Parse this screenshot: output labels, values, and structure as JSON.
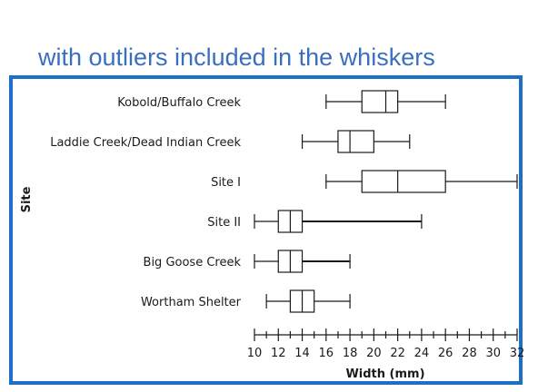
{
  "heading": "with outliers included in the whiskers",
  "chart_data": {
    "type": "box",
    "xlabel": "Width (mm)",
    "ylabel": "Site",
    "xlim": [
      10,
      32
    ],
    "xticks": [
      10,
      12,
      14,
      16,
      18,
      20,
      22,
      24,
      26,
      28,
      30,
      32
    ],
    "series": [
      {
        "name": "Kobold/Buffalo Creek",
        "min": 16,
        "q1": 19,
        "median": 21,
        "q3": 22,
        "max": 26
      },
      {
        "name": "Laddie Creek/Dead Indian Creek",
        "min": 14,
        "q1": 17,
        "median": 18,
        "q3": 20,
        "max": 23
      },
      {
        "name": "Site I",
        "min": 16,
        "q1": 19,
        "median": 22,
        "q3": 26,
        "max": 32
      },
      {
        "name": "Site II",
        "min": 10,
        "q1": 12,
        "median": 13,
        "q3": 14,
        "max": 24
      },
      {
        "name": "Big Goose Creek",
        "min": 10,
        "q1": 12,
        "median": 13,
        "q3": 14,
        "max": 18
      },
      {
        "name": "Wortham Shelter",
        "min": 11,
        "q1": 13,
        "median": 14,
        "q3": 15,
        "max": 18
      }
    ]
  },
  "colors": {
    "heading": "#3a6fc0",
    "frame": "#1e6fc6",
    "ink": "#1a1a1a"
  }
}
